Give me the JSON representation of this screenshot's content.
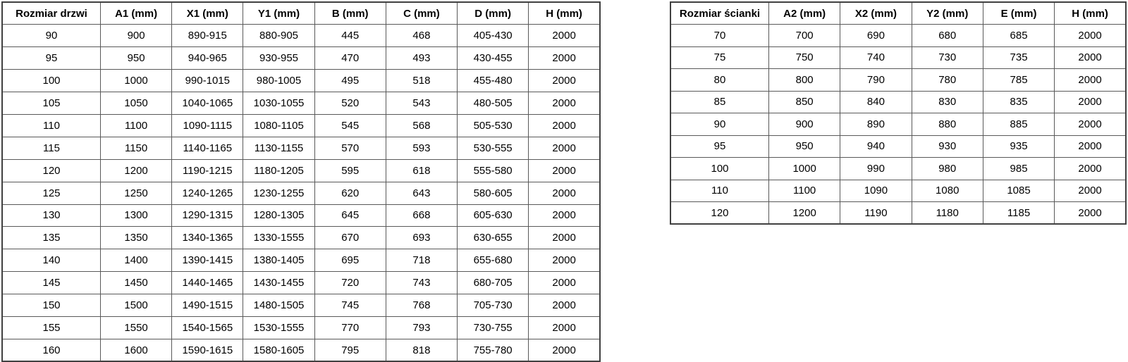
{
  "page": {
    "background": "#ffffff",
    "text_color": "#000000",
    "outer_border_color": "#404040",
    "inner_border_color": "#595959"
  },
  "door_table": {
    "headers": [
      "Rozmiar drzwi",
      "A1 (mm)",
      "X1 (mm)",
      "Y1 (mm)",
      "B (mm)",
      "C (mm)",
      "D (mm)",
      "H (mm)"
    ],
    "rows": [
      [
        "90",
        "900",
        "890-915",
        "880-905",
        "445",
        "468",
        "405-430",
        "2000"
      ],
      [
        "95",
        "950",
        "940-965",
        "930-955",
        "470",
        "493",
        "430-455",
        "2000"
      ],
      [
        "100",
        "1000",
        "990-1015",
        "980-1005",
        "495",
        "518",
        "455-480",
        "2000"
      ],
      [
        "105",
        "1050",
        "1040-1065",
        "1030-1055",
        "520",
        "543",
        "480-505",
        "2000"
      ],
      [
        "110",
        "1100",
        "1090-1115",
        "1080-1105",
        "545",
        "568",
        "505-530",
        "2000"
      ],
      [
        "115",
        "1150",
        "1140-1165",
        "1130-1155",
        "570",
        "593",
        "530-555",
        "2000"
      ],
      [
        "120",
        "1200",
        "1190-1215",
        "1180-1205",
        "595",
        "618",
        "555-580",
        "2000"
      ],
      [
        "125",
        "1250",
        "1240-1265",
        "1230-1255",
        "620",
        "643",
        "580-605",
        "2000"
      ],
      [
        "130",
        "1300",
        "1290-1315",
        "1280-1305",
        "645",
        "668",
        "605-630",
        "2000"
      ],
      [
        "135",
        "1350",
        "1340-1365",
        "1330-1555",
        "670",
        "693",
        "630-655",
        "2000"
      ],
      [
        "140",
        "1400",
        "1390-1415",
        "1380-1405",
        "695",
        "718",
        "655-680",
        "2000"
      ],
      [
        "145",
        "1450",
        "1440-1465",
        "1430-1455",
        "720",
        "743",
        "680-705",
        "2000"
      ],
      [
        "150",
        "1500",
        "1490-1515",
        "1480-1505",
        "745",
        "768",
        "705-730",
        "2000"
      ],
      [
        "155",
        "1550",
        "1540-1565",
        "1530-1555",
        "770",
        "793",
        "730-755",
        "2000"
      ],
      [
        "160",
        "1600",
        "1590-1615",
        "1580-1605",
        "795",
        "818",
        "755-780",
        "2000"
      ]
    ]
  },
  "wall_table": {
    "headers": [
      "Rozmiar ścianki",
      "A2 (mm)",
      "X2 (mm)",
      "Y2 (mm)",
      "E (mm)",
      "H (mm)"
    ],
    "rows": [
      [
        "70",
        "700",
        "690",
        "680",
        "685",
        "2000"
      ],
      [
        "75",
        "750",
        "740",
        "730",
        "735",
        "2000"
      ],
      [
        "80",
        "800",
        "790",
        "780",
        "785",
        "2000"
      ],
      [
        "85",
        "850",
        "840",
        "830",
        "835",
        "2000"
      ],
      [
        "90",
        "900",
        "890",
        "880",
        "885",
        "2000"
      ],
      [
        "95",
        "950",
        "940",
        "930",
        "935",
        "2000"
      ],
      [
        "100",
        "1000",
        "990",
        "980",
        "985",
        "2000"
      ],
      [
        "110",
        "1100",
        "1090",
        "1080",
        "1085",
        "2000"
      ],
      [
        "120",
        "1200",
        "1190",
        "1180",
        "1185",
        "2000"
      ]
    ]
  }
}
